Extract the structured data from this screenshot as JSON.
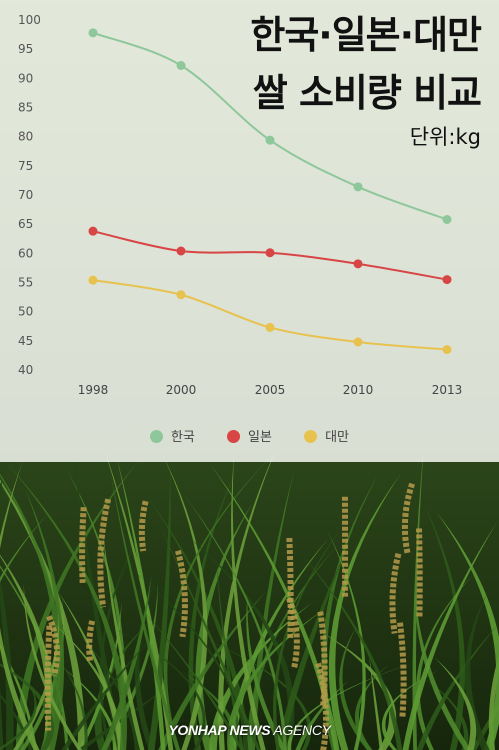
{
  "title_line1": "한국·일본·대만",
  "title_line2": "쌀 소비량 비교",
  "unit_label": "단위:kg",
  "credit": {
    "brand": "YONHAP NEWS",
    "agency": "AGENCY"
  },
  "colors": {
    "korea": "#8dc79a",
    "japan": "#d84545",
    "taiwan": "#e8c24f"
  },
  "legend": [
    {
      "label": "한국",
      "color": "#8dc79a"
    },
    {
      "label": "일본",
      "color": "#d84545"
    },
    {
      "label": "대만",
      "color": "#e8c24f"
    }
  ],
  "chart_data": {
    "type": "line",
    "x": [
      "1998",
      "2000",
      "2005",
      "2010",
      "2013"
    ],
    "series": [
      {
        "name": "한국",
        "values": [
          97.8,
          92.2,
          79.4,
          71.4,
          65.8
        ]
      },
      {
        "name": "일본",
        "values": [
          63.8,
          60.4,
          60.1,
          58.2,
          55.5
        ]
      },
      {
        "name": "대만",
        "values": [
          55.4,
          52.9,
          47.3,
          44.8,
          43.5
        ]
      }
    ],
    "yticks": [
      40,
      45,
      50,
      55,
      60,
      65,
      70,
      75,
      80,
      85,
      90,
      95,
      100
    ],
    "ylim": [
      40,
      100
    ],
    "grid": false,
    "legend_position": "bottom"
  }
}
